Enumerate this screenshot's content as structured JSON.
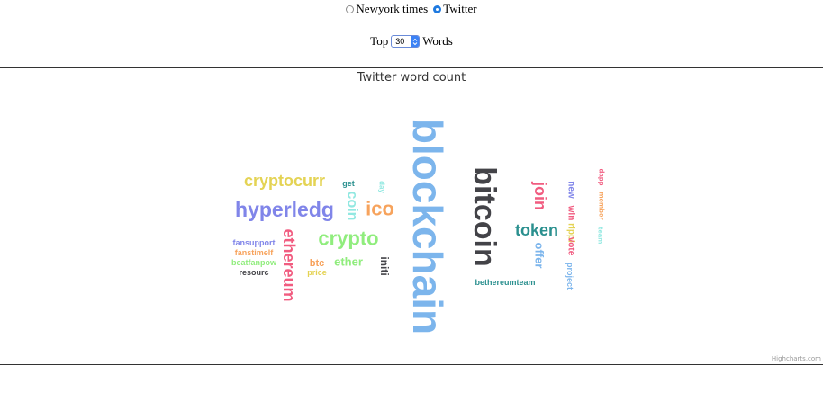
{
  "controls": {
    "sources": [
      {
        "label": "Newyork times",
        "selected": false
      },
      {
        "label": "Twitter",
        "selected": true
      }
    ],
    "top_prefix": "Top",
    "top_value": "30",
    "top_suffix": "Words"
  },
  "chart": {
    "title": "Twitter word count",
    "credits": "Highcharts.com"
  },
  "chart_data": {
    "type": "wordcloud",
    "title": "Twitter word count",
    "words": [
      {
        "text": "blockchain",
        "color": "#7cb5ec",
        "rotated": true
      },
      {
        "text": "bitcoin",
        "color": "#434348",
        "rotated": true
      },
      {
        "text": "crypto",
        "color": "#90ed7d",
        "rotated": false
      },
      {
        "text": "hyperledg",
        "color": "#8085e9",
        "rotated": false
      },
      {
        "text": "ethereum",
        "color": "#f15c80",
        "rotated": true
      },
      {
        "text": "cryptocurr",
        "color": "#e4d354",
        "rotated": false
      },
      {
        "text": "ico",
        "color": "#f7a35c",
        "rotated": false
      },
      {
        "text": "token",
        "color": "#2b908f",
        "rotated": false
      },
      {
        "text": "join",
        "color": "#f15c80",
        "rotated": true
      },
      {
        "text": "coin",
        "color": "#91e8e1",
        "rotated": true
      },
      {
        "text": "ether",
        "color": "#90ed7d",
        "rotated": false
      },
      {
        "text": "offer",
        "color": "#7cb5ec",
        "rotated": true
      },
      {
        "text": "initi",
        "color": "#434348",
        "rotated": true
      },
      {
        "text": "btc",
        "color": "#f7a35c",
        "rotated": false
      },
      {
        "text": "new",
        "color": "#8085e9",
        "rotated": true
      },
      {
        "text": "win",
        "color": "#f15c80",
        "rotated": true
      },
      {
        "text": "rippl",
        "color": "#e4d354",
        "rotated": true
      },
      {
        "text": "vote",
        "color": "#f15c80",
        "rotated": true
      },
      {
        "text": "project",
        "color": "#7cb5ec",
        "rotated": true
      },
      {
        "text": "dapp",
        "color": "#f15c80",
        "rotated": true
      },
      {
        "text": "member",
        "color": "#f7a35c",
        "rotated": true
      },
      {
        "text": "team",
        "color": "#91e8e1",
        "rotated": true
      },
      {
        "text": "get",
        "color": "#2b908f",
        "rotated": false
      },
      {
        "text": "day",
        "color": "#91e8e1",
        "rotated": true
      },
      {
        "text": "fansupport",
        "color": "#8085e9",
        "rotated": false
      },
      {
        "text": "fanstimelf",
        "color": "#f7a35c",
        "rotated": false
      },
      {
        "text": "beatfanpow",
        "color": "#90ed7d",
        "rotated": false
      },
      {
        "text": "resourc",
        "color": "#434348",
        "rotated": false
      },
      {
        "text": "price",
        "color": "#e4d354",
        "rotated": false
      },
      {
        "text": "bethereumteam",
        "color": "#2b908f",
        "rotated": false
      }
    ]
  }
}
